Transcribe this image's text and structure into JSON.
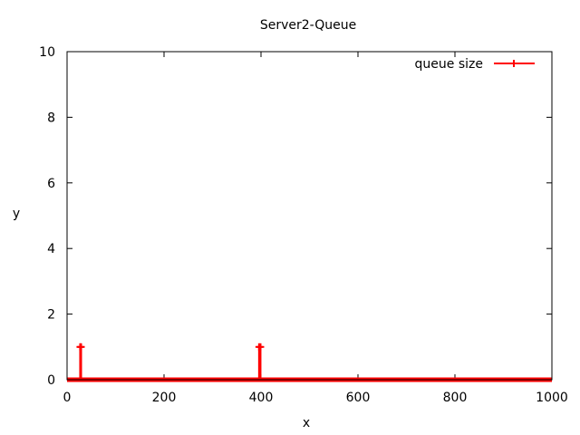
{
  "chart_data": {
    "type": "line",
    "title": "Server2-Queue",
    "xlabel": "x",
    "ylabel": "y",
    "xlim": [
      0,
      1000
    ],
    "ylim": [
      0,
      10
    ],
    "xticks": [
      0,
      200,
      400,
      600,
      800,
      1000
    ],
    "yticks": [
      0,
      2,
      4,
      6,
      8,
      10
    ],
    "grid": false,
    "legend_position": "top-right",
    "series": [
      {
        "name": "queue size",
        "color": "#ff0000",
        "marker": "plus",
        "x": [
          0,
          27,
          27,
          29,
          29,
          396,
          396,
          399,
          399,
          1000
        ],
        "y": [
          0,
          0,
          1,
          1,
          0,
          0,
          1,
          1,
          0,
          0
        ]
      }
    ]
  }
}
